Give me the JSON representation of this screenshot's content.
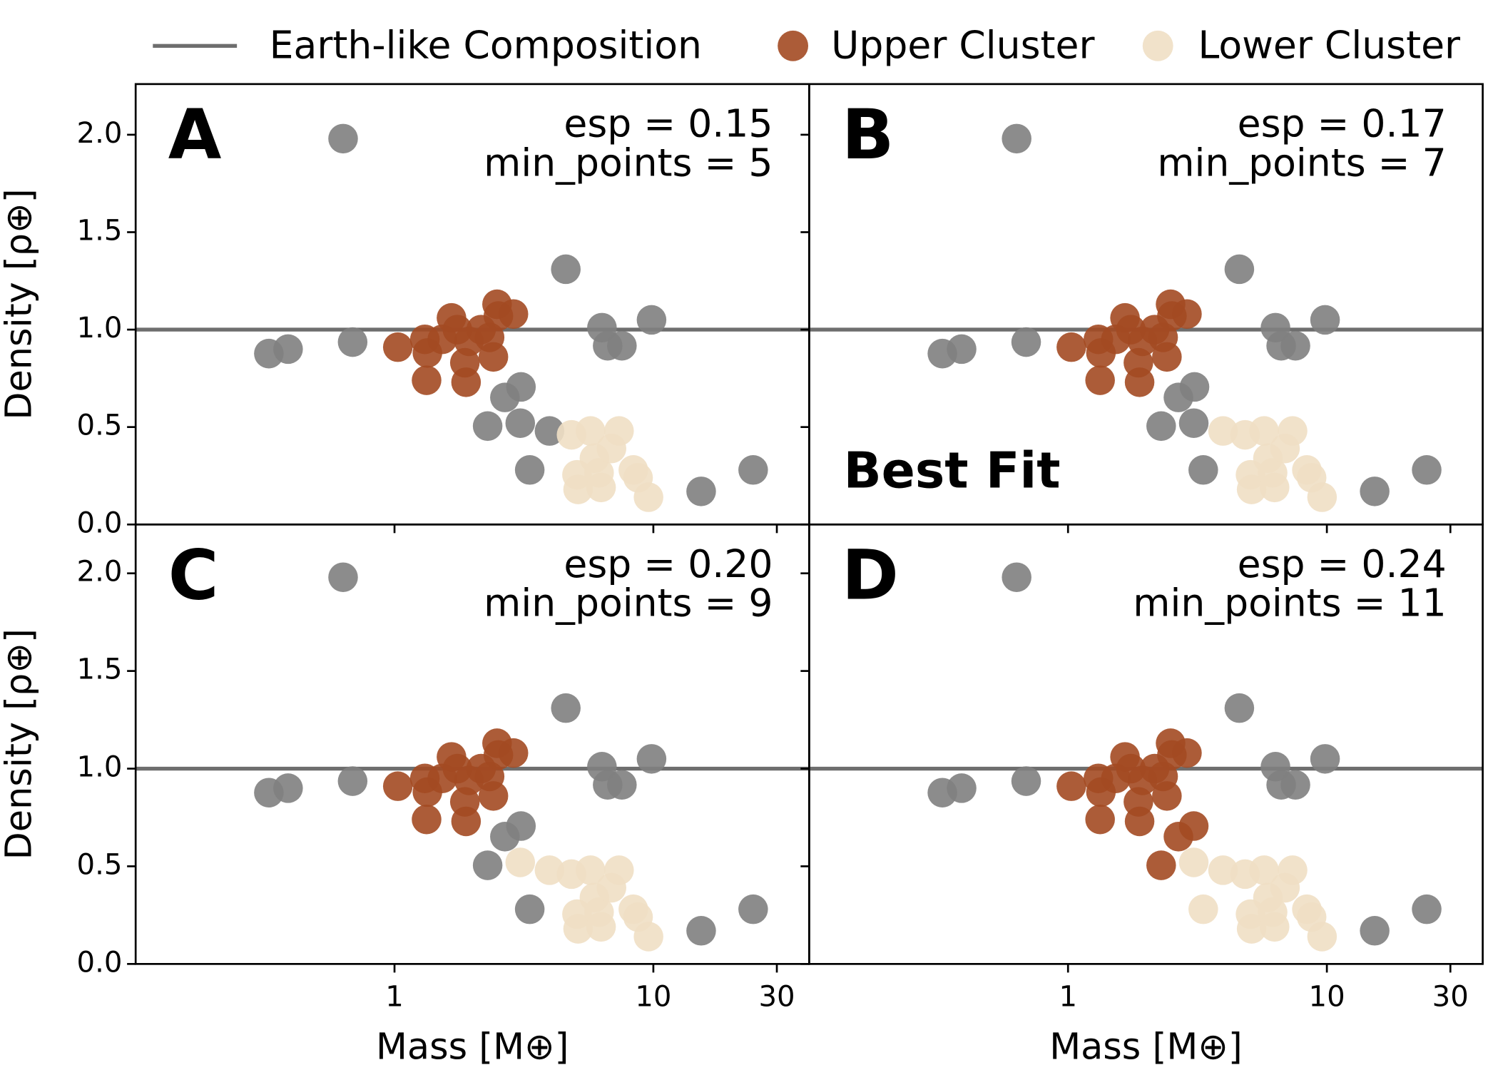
{
  "legend": {
    "line": "Earth-like Composition",
    "line_color": "#6e6e6e"
  },
  "chart_data": [
    {
      "type": "scatter",
      "label": "A",
      "annotation": [
        "esp = 0.15",
        "min_points = 5"
      ],
      "xlabel": null,
      "ylabel": "Density [ρ⊕]",
      "xscale": "log",
      "xlim": [
        0.1,
        40
      ],
      "ylim": [
        0,
        2.26
      ],
      "xticks": [
        1,
        10,
        30
      ],
      "xtick_labels": false,
      "ytick_labels": true,
      "yticks": [
        {
          "value": 0,
          "label": "0.0"
        },
        {
          "value": 0.5,
          "label": "0.5"
        },
        {
          "value": 1,
          "label": "1.0"
        },
        {
          "value": 1.5,
          "label": "1.5"
        },
        {
          "value": 2,
          "label": "2.0"
        }
      ],
      "hline": 1,
      "series": [
        {
          "color": "#7f7f7f",
          "x": [
            0.633,
            0.327,
            0.388,
            0.689,
            4.59,
            9.84,
            6.33,
            6.66,
            7.56,
            2.67,
            3.08,
            2.29,
            3.06,
            3.97,
            3.33,
            15.3,
            24.3
          ],
          "values": [
            1.98,
            0.877,
            0.9,
            0.936,
            1.31,
            1.05,
            1.01,
            0.917,
            0.917,
            0.652,
            0.706,
            0.505,
            0.52,
            0.48,
            0.28,
            0.17,
            0.28
          ]
        },
        {
          "name": "Upper Cluster",
          "color": "#a34a22",
          "x": [
            1.03,
            1.31,
            1.33,
            1.34,
            1.53,
            1.66,
            1.75,
            1.87,
            1.89,
            1.94,
            2.16,
            2.33,
            2.41,
            2.49,
            2.52,
            2.88
          ],
          "values": [
            0.91,
            0.95,
            0.74,
            0.88,
            0.95,
            1.06,
            1.0,
            0.83,
            0.73,
            0.94,
            1.0,
            0.96,
            0.86,
            1.13,
            1.07,
            1.08
          ]
        },
        {
          "name": "Lower Cluster",
          "color": "#f0dfc4",
          "x": [
            4.83,
            5.72,
            7.37,
            5.07,
            5.12,
            5.92,
            6.17,
            6.28,
            6.89,
            8.37,
            8.73,
            9.58
          ],
          "values": [
            0.46,
            0.48,
            0.48,
            0.255,
            0.18,
            0.34,
            0.265,
            0.19,
            0.39,
            0.28,
            0.24,
            0.14
          ]
        }
      ]
    },
    {
      "type": "scatter",
      "label": "B",
      "annotation": [
        "esp = 0.17",
        "min_points = 7"
      ],
      "note": "Best Fit",
      "xscale": "log",
      "xlim": [
        0.1,
        40
      ],
      "ylim": [
        0,
        2.26
      ],
      "xticks": [
        1,
        10,
        30
      ],
      "xtick_labels": false,
      "ytick_labels": false,
      "yticks": [
        0,
        0.5,
        1,
        1.5,
        2
      ],
      "hline": 1,
      "series": [
        {
          "color": "#7f7f7f",
          "x": [
            0.633,
            0.327,
            0.388,
            0.689,
            4.59,
            9.84,
            6.33,
            6.66,
            7.56,
            2.67,
            3.08,
            2.29,
            3.06,
            3.33,
            15.3,
            24.3
          ],
          "values": [
            1.98,
            0.877,
            0.9,
            0.936,
            1.31,
            1.05,
            1.01,
            0.917,
            0.917,
            0.652,
            0.706,
            0.505,
            0.52,
            0.28,
            0.17,
            0.28
          ]
        },
        {
          "color": "#a34a22",
          "x": [
            1.03,
            1.31,
            1.33,
            1.34,
            1.53,
            1.66,
            1.75,
            1.87,
            1.89,
            1.94,
            2.16,
            2.33,
            2.41,
            2.49,
            2.52,
            2.88
          ],
          "values": [
            0.91,
            0.95,
            0.74,
            0.88,
            0.95,
            1.06,
            1.0,
            0.83,
            0.73,
            0.94,
            1.0,
            0.96,
            0.86,
            1.13,
            1.07,
            1.08
          ]
        },
        {
          "color": "#f0dfc4",
          "x": [
            3.97,
            4.83,
            5.72,
            7.37,
            5.07,
            5.12,
            5.92,
            6.17,
            6.28,
            6.89,
            8.37,
            8.73,
            9.58
          ],
          "values": [
            0.48,
            0.46,
            0.48,
            0.48,
            0.255,
            0.18,
            0.34,
            0.265,
            0.19,
            0.39,
            0.28,
            0.24,
            0.14
          ]
        }
      ]
    },
    {
      "type": "scatter",
      "label": "C",
      "annotation": [
        "esp = 0.20",
        "min_points = 9"
      ],
      "xlabel": "Mass [M⊕]",
      "ylabel": "Density [ρ⊕]",
      "xscale": "log",
      "xlim": [
        0.1,
        40
      ],
      "ylim": [
        0,
        2.25
      ],
      "xticks": [
        1,
        10,
        30
      ],
      "xtick_labels": true,
      "ytick_labels": true,
      "yticks": [
        {
          "value": 0,
          "label": "0.0"
        },
        {
          "value": 0.5,
          "label": "0.5"
        },
        {
          "value": 1,
          "label": "1.0"
        },
        {
          "value": 1.5,
          "label": "1.5"
        },
        {
          "value": 2,
          "label": "2.0"
        }
      ],
      "hline": 1,
      "series": [
        {
          "color": "#7f7f7f",
          "x": [
            0.633,
            0.327,
            0.388,
            0.689,
            4.59,
            9.84,
            6.33,
            6.66,
            7.56,
            2.67,
            3.08,
            2.29,
            3.33,
            15.3,
            24.3
          ],
          "values": [
            1.98,
            0.877,
            0.9,
            0.936,
            1.31,
            1.05,
            1.01,
            0.917,
            0.917,
            0.652,
            0.706,
            0.505,
            0.28,
            0.17,
            0.28
          ]
        },
        {
          "color": "#a34a22",
          "x": [
            1.03,
            1.31,
            1.33,
            1.34,
            1.53,
            1.66,
            1.75,
            1.87,
            1.89,
            1.94,
            2.16,
            2.33,
            2.41,
            2.49,
            2.52,
            2.88
          ],
          "values": [
            0.91,
            0.95,
            0.74,
            0.88,
            0.95,
            1.06,
            1.0,
            0.83,
            0.73,
            0.94,
            1.0,
            0.96,
            0.86,
            1.13,
            1.07,
            1.08
          ]
        },
        {
          "color": "#f0dfc4",
          "x": [
            3.06,
            3.97,
            4.83,
            5.72,
            7.37,
            5.07,
            5.12,
            5.92,
            6.17,
            6.28,
            6.89,
            8.37,
            8.73,
            9.58
          ],
          "values": [
            0.52,
            0.48,
            0.46,
            0.48,
            0.48,
            0.255,
            0.18,
            0.34,
            0.265,
            0.19,
            0.39,
            0.28,
            0.24,
            0.14
          ]
        }
      ]
    },
    {
      "type": "scatter",
      "label": "D",
      "annotation": [
        "esp = 0.24",
        "min_points = 11"
      ],
      "xlabel": "Mass [M⊕]",
      "xscale": "log",
      "xlim": [
        0.1,
        40
      ],
      "ylim": [
        0,
        2.25
      ],
      "xticks": [
        1,
        10,
        30
      ],
      "xtick_labels": true,
      "ytick_labels": false,
      "yticks": [
        0,
        0.5,
        1,
        1.5,
        2
      ],
      "hline": 1,
      "series": [
        {
          "color": "#7f7f7f",
          "x": [
            0.633,
            0.327,
            0.388,
            0.689,
            4.59,
            9.84,
            6.33,
            6.66,
            7.56,
            15.3,
            24.3
          ],
          "values": [
            1.98,
            0.877,
            0.9,
            0.936,
            1.31,
            1.05,
            1.01,
            0.917,
            0.917,
            0.17,
            0.28
          ]
        },
        {
          "color": "#a34a22",
          "x": [
            1.03,
            1.31,
            1.33,
            1.34,
            1.53,
            1.66,
            1.75,
            1.87,
            1.89,
            1.94,
            2.16,
            2.33,
            2.41,
            2.49,
            2.52,
            2.88,
            2.29,
            2.67,
            3.06
          ],
          "values": [
            0.91,
            0.95,
            0.74,
            0.88,
            0.95,
            1.06,
            1.0,
            0.83,
            0.73,
            0.94,
            1.0,
            0.96,
            0.86,
            1.13,
            1.07,
            1.08,
            0.505,
            0.652,
            0.706
          ]
        },
        {
          "color": "#f0dfc4",
          "x": [
            3.06,
            3.33,
            3.97,
            4.83,
            5.72,
            7.37,
            5.07,
            5.12,
            5.92,
            6.17,
            6.28,
            6.89,
            8.37,
            8.73,
            9.58
          ],
          "values": [
            0.52,
            0.28,
            0.48,
            0.46,
            0.48,
            0.48,
            0.255,
            0.18,
            0.34,
            0.265,
            0.19,
            0.39,
            0.28,
            0.24,
            0.14
          ]
        }
      ]
    }
  ]
}
